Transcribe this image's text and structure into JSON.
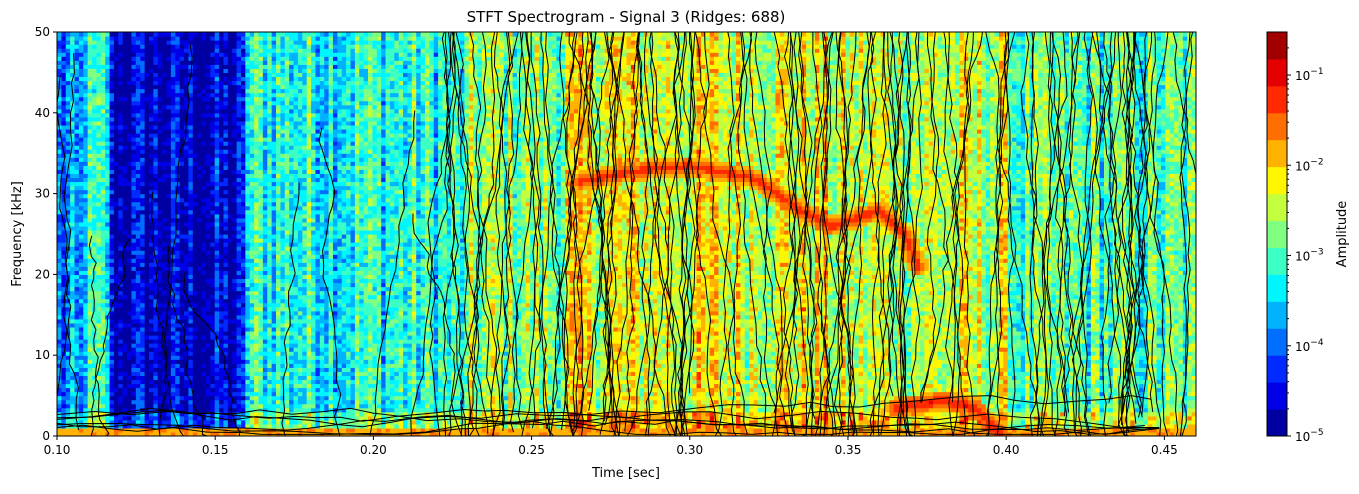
{
  "chart_data": {
    "type": "heatmap",
    "title": "STFT Spectrogram - Signal 3 (Ridges: 688)",
    "xlabel": "Time [sec]",
    "ylabel": "Frequency [kHz]",
    "xlim": [
      0.1,
      0.46
    ],
    "ylim": [
      0,
      50
    ],
    "xticks": [
      0.1,
      0.15,
      0.2,
      0.25,
      0.3,
      0.35,
      0.4,
      0.45
    ],
    "xtick_labels": [
      "0.10",
      "0.15",
      "0.20",
      "0.25",
      "0.30",
      "0.35",
      "0.40",
      "0.45"
    ],
    "yticks": [
      0,
      10,
      20,
      30,
      40,
      50
    ],
    "ytick_labels": [
      "0",
      "10",
      "20",
      "30",
      "40",
      "50"
    ],
    "colormap": "jet",
    "colorbar": {
      "label": "Amplitude",
      "scale": "log",
      "range": [
        1e-05,
        0.3
      ],
      "ticks": [
        1e-05,
        0.0001,
        0.001,
        0.01,
        0.1
      ],
      "tick_mantissa": "10",
      "tick_exponents": [
        "−5",
        "−4",
        "−3",
        "−2",
        "−1"
      ],
      "levels": 15
    },
    "ridge_count": 688,
    "ridge_color": "#000000",
    "time_segments": [
      {
        "t": [
          0.1,
          0.108
        ],
        "level_log10": -4.0
      },
      {
        "t": [
          0.108,
          0.116
        ],
        "level_log10": -3.3
      },
      {
        "t": [
          0.116,
          0.159
        ],
        "level_log10": -4.7
      },
      {
        "t": [
          0.159,
          0.23
        ],
        "level_log10": -3.2
      },
      {
        "t": [
          0.23,
          0.26
        ],
        "level_log10": -2.7
      },
      {
        "t": [
          0.26,
          0.345
        ],
        "level_log10": -2.3
      },
      {
        "t": [
          0.345,
          0.402
        ],
        "level_log10": -2.5
      },
      {
        "t": [
          0.402,
          0.46
        ],
        "level_log10": -3.0
      }
    ],
    "features": [
      {
        "name": "main-ridge",
        "points": [
          [
            0.265,
            31.5
          ],
          [
            0.285,
            33
          ],
          [
            0.3,
            33.5
          ],
          [
            0.32,
            32
          ],
          [
            0.335,
            28
          ],
          [
            0.345,
            26
          ],
          [
            0.36,
            28
          ],
          [
            0.368,
            25
          ],
          [
            0.372,
            21
          ]
        ],
        "level_log10": -1.2
      },
      {
        "name": "low-freq-ridge",
        "points": [
          [
            0.365,
            3.5
          ],
          [
            0.38,
            4.5
          ],
          [
            0.39,
            3.5
          ],
          [
            0.398,
            0.5
          ]
        ],
        "level_log10": -1.1
      },
      {
        "name": "baseline-band",
        "points": [
          [
            0.1,
            0.5
          ],
          [
            0.46,
            0.5
          ]
        ],
        "level_log10": -1.8
      }
    ]
  }
}
